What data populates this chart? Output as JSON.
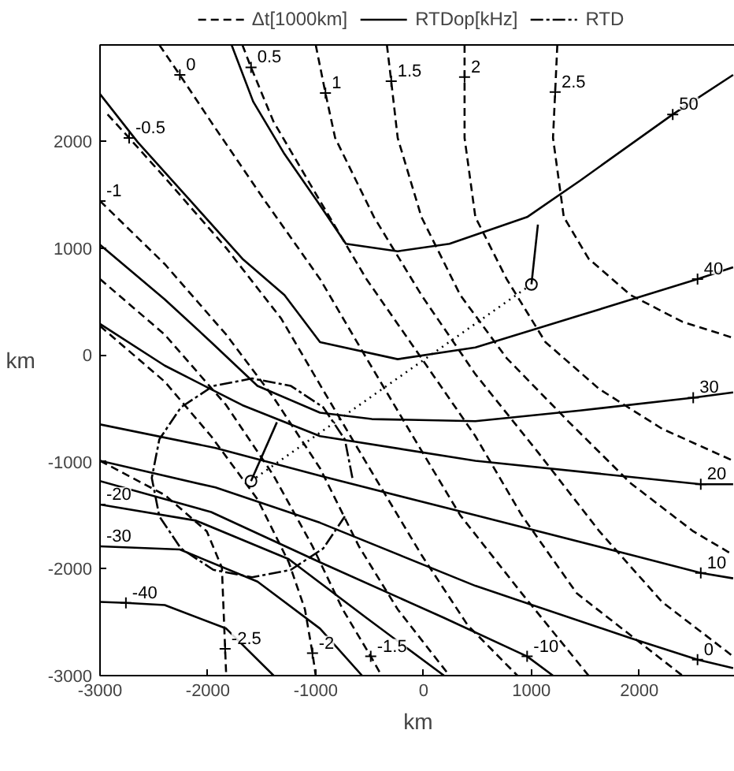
{
  "chart_data": {
    "type": "line",
    "xlabel": "km",
    "ylabel": "km",
    "xlim": [
      -3000,
      2900
    ],
    "ylim": [
      -3000,
      2900
    ],
    "xticks": [
      -3000,
      -2000,
      -1000,
      0,
      1000,
      2000
    ],
    "yticks": [
      -3000,
      -2000,
      -1000,
      0,
      1000,
      2000
    ],
    "grid": false,
    "legend": "top",
    "series": [
      {
        "name": "Δt[1000km]",
        "color": "#000000",
        "line_style": "dashed",
        "x": [
          1240,
          1220,
          1200,
          1300,
          1530,
          1920,
          2400,
          2870
        ],
        "values": [
          2900,
          2460,
          2030,
          1290,
          900,
          560,
          310,
          160
        ]
      },
      {
        "color": "#000000",
        "line_style": "dashed",
        "x": [
          380,
          380,
          380,
          480,
          770,
          1130,
          1630,
          2210,
          2870
        ],
        "values": [
          2900,
          2600,
          2030,
          1290,
          710,
          120,
          -320,
          -690,
          -990
        ]
      },
      {
        "color": "#000000",
        "line_style": "dashed",
        "x": [
          -340,
          -300,
          -240,
          -20,
          340,
          770,
          1340,
          1920,
          2500,
          2870
        ],
        "values": [
          2900,
          2560,
          2030,
          1290,
          560,
          -30,
          -620,
          -1200,
          -1650,
          -1870
        ]
      },
      {
        "color": "#000000",
        "line_style": "dashed",
        "x": [
          -1000,
          -910,
          -820,
          -460,
          -20,
          480,
          1060,
          1630,
          2210,
          2870
        ],
        "values": [
          2900,
          2450,
          2030,
          1290,
          560,
          -180,
          -910,
          -1650,
          -2310,
          -2820
        ]
      },
      {
        "color": "#000000",
        "line_style": "dashed",
        "x": [
          -1680,
          -1600,
          -1390,
          -960,
          -530,
          -20,
          480,
          910,
          1420,
          2400
        ],
        "values": [
          2900,
          2690,
          2180,
          1440,
          710,
          -30,
          -760,
          -1500,
          -2230,
          -3000
        ]
      },
      {
        "color": "#000000",
        "line_style": "dashed",
        "x": [
          -2450,
          -2260,
          -1970,
          -1470,
          -960,
          -530,
          -100,
          340,
          910,
          1530
        ],
        "values": [
          2900,
          2620,
          2180,
          1440,
          710,
          -30,
          -760,
          -1500,
          -2230,
          -3000
        ]
      },
      {
        "color": "#000000",
        "line_style": "dashed",
        "x": [
          -2930,
          -2730,
          -2400,
          -1830,
          -1320,
          -890,
          -460,
          -20,
          410,
          870
        ],
        "values": [
          2250,
          2030,
          1660,
          1000,
          340,
          -400,
          -1130,
          -1870,
          -2530,
          -3000
        ]
      },
      {
        "color": "#000000",
        "line_style": "dashed",
        "x": [
          -3000,
          -2400,
          -1830,
          -1390,
          -960,
          -600,
          -240,
          240
        ],
        "values": [
          1440,
          850,
          190,
          -400,
          -1060,
          -1790,
          -2380,
          -3000
        ]
      },
      {
        "color": "#000000",
        "line_style": "dashed",
        "x": [
          -3000,
          -2400,
          -1830,
          -1390,
          -1030,
          -750,
          -490,
          -390
        ],
        "values": [
          710,
          190,
          -470,
          -1130,
          -1790,
          -2380,
          -2820,
          -3000
        ]
      },
      {
        "color": "#000000",
        "line_style": "dashed",
        "x": [
          -3000,
          -2400,
          -1970,
          -1540,
          -1250,
          -1100,
          -1030,
          -1000
        ],
        "values": [
          270,
          -250,
          -760,
          -1350,
          -1940,
          -2380,
          -2790,
          -3000
        ]
      },
      {
        "color": "#000000",
        "line_style": "dashed",
        "x": [
          -3000,
          -2400,
          -2010,
          -1870,
          -1840,
          -1830
        ],
        "values": [
          -990,
          -1310,
          -1650,
          -1990,
          -2750,
          -3000
        ]
      },
      {
        "name": "RTDop[kHz]",
        "color": "#000000",
        "line_style": "solid",
        "x": [
          -1780,
          -1580,
          -1290,
          -960,
          -720,
          -240,
          240,
          960,
          1450,
          2310,
          2870
        ],
        "values": [
          2900,
          2370,
          1880,
          1400,
          1040,
          970,
          1040,
          1290,
          1630,
          2250,
          2620
        ]
      },
      {
        "color": "#000000",
        "line_style": "solid",
        "x": [
          -3000,
          -2650,
          -2160,
          -1680,
          -1290,
          -960,
          -240,
          480,
          1450,
          2540,
          2870
        ],
        "values": [
          2440,
          1990,
          1440,
          900,
          560,
          120,
          -40,
          70,
          370,
          710,
          820
        ]
      },
      {
        "color": "#000000",
        "line_style": "solid",
        "x": [
          -3000,
          -2400,
          -1970,
          -1540,
          -960,
          -480,
          480,
          1450,
          2500,
          2870
        ],
        "values": [
          1030,
          520,
          120,
          -290,
          -540,
          -600,
          -620,
          -520,
          -400,
          -350
        ]
      },
      {
        "color": "#000000",
        "line_style": "solid",
        "x": [
          -3000,
          -2400,
          -1680,
          -960,
          480,
          2570,
          2870
        ],
        "values": [
          290,
          -100,
          -470,
          -760,
          -990,
          -1210,
          -1210
        ]
      },
      {
        "color": "#000000",
        "line_style": "solid",
        "x": [
          -3000,
          -1930,
          -960,
          480,
          1920,
          2570,
          2870
        ],
        "values": [
          -650,
          -870,
          -1130,
          -1500,
          -1870,
          -2040,
          -2090
        ]
      },
      {
        "color": "#000000",
        "line_style": "solid",
        "x": [
          -3000,
          -1930,
          -960,
          480,
          1920,
          2540,
          2870
        ],
        "values": [
          -990,
          -1240,
          -1570,
          -2160,
          -2650,
          -2850,
          -2930
        ]
      },
      {
        "color": "#000000",
        "line_style": "solid",
        "x": [
          -3000,
          -1970,
          -960,
          190,
          960,
          1200
        ],
        "values": [
          -1180,
          -1470,
          -1940,
          -2460,
          -2820,
          -3000
        ]
      },
      {
        "color": "#000000",
        "line_style": "solid",
        "x": [
          -3000,
          -2110,
          -1250,
          -530,
          190
        ],
        "values": [
          -1400,
          -1550,
          -1910,
          -2460,
          -3000
        ]
      },
      {
        "color": "#000000",
        "line_style": "solid",
        "x": [
          -3000,
          -2260,
          -1540,
          -960,
          -570
        ],
        "values": [
          -1790,
          -1820,
          -2120,
          -2560,
          -3000
        ]
      },
      {
        "color": "#000000",
        "line_style": "solid",
        "x": [
          -3000,
          -2760,
          -2400,
          -1830,
          -1390
        ],
        "values": [
          -2310,
          -2320,
          -2340,
          -2560,
          -3000
        ]
      },
      {
        "name": "RTD",
        "color": "#000000",
        "line_style": "dashdot",
        "x": [
          -660,
          -730,
          -930,
          -1230,
          -1590,
          -1950,
          -2250,
          -2450,
          -2520,
          -2450,
          -2250,
          -1950,
          -1590,
          -1230,
          -930,
          -730
        ],
        "values": [
          -1150,
          -790,
          -490,
          -290,
          -220,
          -290,
          -490,
          -790,
          -1150,
          -1510,
          -1810,
          -2010,
          -2080,
          -2010,
          -1810,
          -1510
        ]
      },
      {
        "color": "#000000",
        "line_style": "dotted",
        "marker": "circle",
        "x": [
          -1600,
          1000
        ],
        "values": [
          -1180,
          660
        ]
      },
      {
        "color": "#000000",
        "line_style": "solid",
        "x": [
          -1600,
          -1360
        ],
        "values": [
          -1180,
          -630
        ]
      },
      {
        "color": "#000000",
        "line_style": "solid",
        "x": [
          1000,
          1060
        ],
        "values": [
          660,
          1220
        ]
      }
    ],
    "annotations": [
      {
        "text": "0",
        "x": -2260,
        "y": 2620
      },
      {
        "text": "0.5",
        "x": -1600,
        "y": 2690
      },
      {
        "text": "1",
        "x": -910,
        "y": 2450
      },
      {
        "text": "1.5",
        "x": -300,
        "y": 2560
      },
      {
        "text": "2",
        "x": 380,
        "y": 2600
      },
      {
        "text": "2.5",
        "x": 1220,
        "y": 2460
      },
      {
        "text": "-0.5",
        "x": -2730,
        "y": 2030
      },
      {
        "text": "-1",
        "x": -3000,
        "y": 1440
      },
      {
        "text": "-2.5",
        "x": -1840,
        "y": -2750
      },
      {
        "text": "-2",
        "x": -1030,
        "y": -2790
      },
      {
        "text": "-1.5",
        "x": -490,
        "y": -2820
      },
      {
        "text": "50",
        "x": 2310,
        "y": 2250
      },
      {
        "text": "40",
        "x": 2540,
        "y": 710
      },
      {
        "text": "30",
        "x": 2500,
        "y": -400
      },
      {
        "text": "20",
        "x": 2570,
        "y": -1210
      },
      {
        "text": "10",
        "x": 2570,
        "y": -2040
      },
      {
        "text": "0",
        "x": 2540,
        "y": -2850
      },
      {
        "text": "-10",
        "x": 960,
        "y": -2820
      },
      {
        "text": "-20",
        "x": -3000,
        "y": -1400
      },
      {
        "text": "-30",
        "x": -3000,
        "y": -1790
      },
      {
        "text": "-40",
        "x": -2760,
        "y": -2320
      }
    ]
  }
}
